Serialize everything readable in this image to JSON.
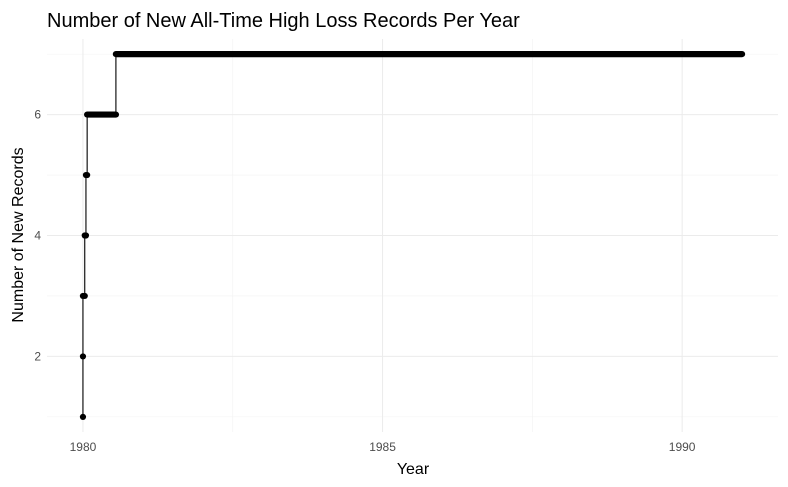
{
  "chart_data": {
    "type": "line",
    "title": "Number of New All-Time High Loss Records Per Year",
    "xlabel": "Year",
    "ylabel": "Number of New Records",
    "xlim": [
      1979.4,
      1991.6
    ],
    "ylim": [
      0.75,
      7.25
    ],
    "x_ticks": [
      1980,
      1985,
      1990
    ],
    "x_tick_labels": [
      "1980",
      "1985",
      "1990"
    ],
    "y_ticks": [
      2,
      4,
      6
    ],
    "y_tick_labels": [
      "2",
      "4",
      "6"
    ],
    "grid": true,
    "legend": "none",
    "series": [
      {
        "color": "#000000",
        "markers": true,
        "x_start": 1980.0,
        "x_end": 1991.0,
        "steps": [
          {
            "x": 1980.0,
            "y": 1
          },
          {
            "x": 1980.0,
            "y": 2
          },
          {
            "x": 1980.0,
            "y": 3
          },
          {
            "x": 1980.03,
            "y": 4
          },
          {
            "x": 1980.05,
            "y": 5
          },
          {
            "x": 1980.07,
            "y": 6
          },
          {
            "x": 1980.55,
            "y": 7
          }
        ]
      }
    ]
  }
}
